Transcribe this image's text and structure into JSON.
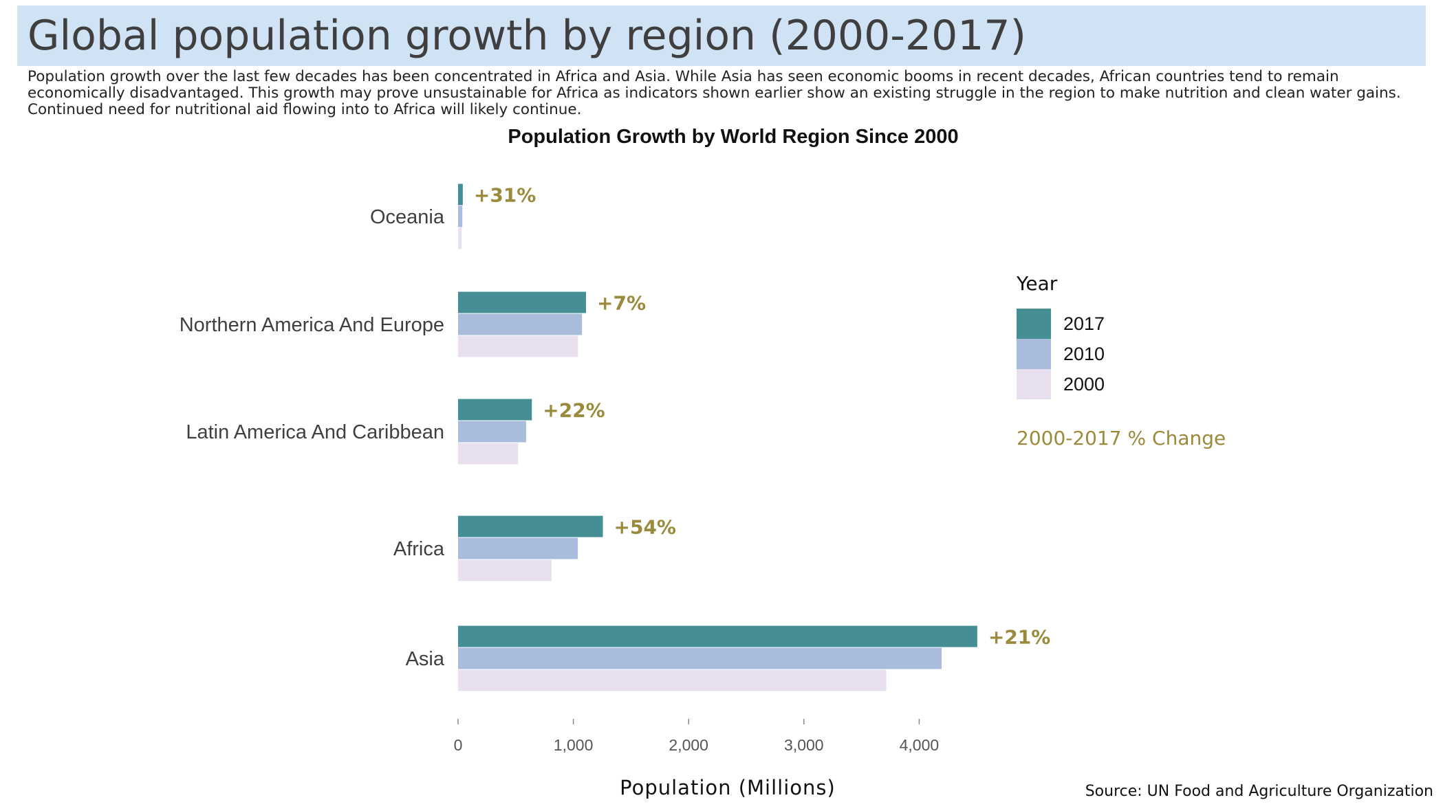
{
  "page": {
    "title": "Global population growth by region (2000-2017)",
    "intro": "Population growth over the last few decades has been concentrated in Africa and Asia. While Asia has seen economic booms in recent decades, African countries tend to remain economically disadvantaged. This growth may prove unsustainable for Africa as indicators shown earlier show an existing struggle in the region to make nutrition and clean water gains. Continued need for nutritional aid flowing into to Africa will likely continue.",
    "source": "Source: UN Food and Agriculture Organization"
  },
  "colors": {
    "title_band": "#cfe3f4",
    "series_2017": "#458f94",
    "series_2010": "#a9bcdb",
    "series_2000": "#e8e0ef",
    "pct_change": "#9a8a3c"
  },
  "chart_data": {
    "type": "bar",
    "orientation": "horizontal",
    "title": "Population Growth by World Region Since 2000",
    "xlabel": "Population (Millions)",
    "ylabel": "",
    "xlim": [
      0,
      4500
    ],
    "xticks": [
      0,
      1000,
      2000,
      3000,
      4000
    ],
    "xtick_labels": [
      "0",
      "1,000",
      "2,000",
      "3,000",
      "4,000"
    ],
    "grid": false,
    "categories": [
      "Oceania",
      "Northern America And Europe",
      "Latin America And Caribbean",
      "Africa",
      "Asia"
    ],
    "series": [
      {
        "name": "2017",
        "values": [
          41,
          1110,
          640,
          1256,
          4504
        ]
      },
      {
        "name": "2010",
        "values": [
          37,
          1075,
          590,
          1039,
          4195
        ]
      },
      {
        "name": "2000",
        "values": [
          31,
          1040,
          520,
          811,
          3715
        ]
      }
    ],
    "pct_change_labels": [
      "+31%",
      "+7%",
      "+22%",
      "+54%",
      "+21%"
    ],
    "legend": {
      "title": "Year",
      "position": "right",
      "entries": [
        "2017",
        "2010",
        "2000"
      ],
      "annotation": "2000-2017 % Change"
    }
  }
}
